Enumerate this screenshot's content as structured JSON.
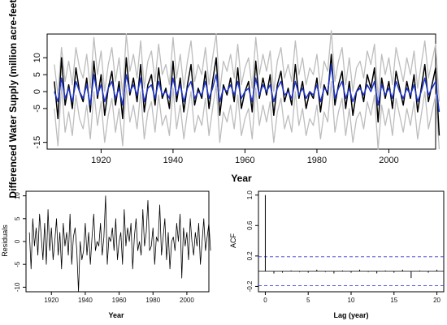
{
  "colors": {
    "black": "#000000",
    "blue": "#1f35c8",
    "gray": "#bdbdbd",
    "ci_dashed": "#3b3bd6"
  },
  "chart_data": [
    {
      "type": "line",
      "xlabel": "Year",
      "ylabel": "Differenced Water Supply (million acre-feet)",
      "xlim": [
        1905,
        2013
      ],
      "ylim": [
        -17,
        17
      ],
      "xticks": [
        1920,
        1940,
        1960,
        1980,
        2000
      ],
      "yticks": [
        -15,
        -5,
        0,
        5,
        10
      ],
      "x_start": 1907,
      "series": [
        {
          "color": "#000000",
          "values": [
            3,
            -8,
            10,
            -4,
            2,
            -5,
            7,
            0,
            -3,
            4,
            -6,
            9,
            -2,
            5,
            -7,
            1,
            6,
            -4,
            3,
            -8,
            10,
            -1,
            4,
            -3,
            8,
            -6,
            2,
            5,
            -4,
            7,
            -2,
            1,
            -5,
            9,
            -3,
            4,
            -6,
            2,
            8,
            -4,
            1,
            -2,
            6,
            -5,
            3,
            10,
            -7,
            2,
            -1,
            4,
            -3,
            7,
            -5,
            0,
            3,
            -6,
            9,
            -2,
            4,
            -1,
            5,
            -7,
            2,
            6,
            -3,
            1,
            -4,
            8,
            -2,
            3,
            -5,
            0,
            -2,
            4,
            -6,
            2,
            -1,
            11,
            -4,
            2,
            6,
            -5,
            3,
            -7,
            0,
            2,
            -3,
            5,
            1,
            7,
            -9,
            4,
            -2,
            3,
            -5,
            6,
            1,
            -4,
            3,
            -2,
            5,
            -6,
            1,
            8,
            -3,
            2,
            7,
            -13
          ]
        },
        {
          "color": "#1f35c8",
          "values": [
            0,
            -3,
            4,
            -2,
            1,
            -3,
            3,
            0,
            -2,
            2,
            -4,
            5,
            -1,
            2,
            -3,
            1,
            3,
            -2,
            1,
            -4,
            5,
            0,
            2,
            -1,
            4,
            -3,
            1,
            2,
            -2,
            3,
            -1,
            0,
            -2,
            4,
            -1,
            2,
            -3,
            1,
            3,
            -2,
            0,
            -1,
            3,
            -2,
            1,
            5,
            -3,
            1,
            0,
            2,
            -1,
            3,
            -2,
            0,
            1,
            -3,
            4,
            -1,
            2,
            0,
            2,
            -3,
            1,
            3,
            -1,
            0,
            -2,
            3,
            -1,
            1,
            -2,
            0,
            -1,
            2,
            -3,
            1,
            0,
            8,
            -2,
            1,
            3,
            -2,
            1,
            -3,
            0,
            1,
            -1,
            2,
            0,
            3,
            -4,
            2,
            -1,
            1,
            -2,
            3,
            0,
            -2,
            1,
            -1,
            2,
            -3,
            0,
            4,
            -1,
            1,
            3,
            -6
          ]
        },
        {
          "color": "#bdbdbd",
          "values": [
            8,
            -1,
            13,
            3,
            9,
            2,
            13,
            7,
            4,
            11,
            1,
            16,
            5,
            12,
            0,
            8,
            13,
            3,
            10,
            -1,
            17,
            6,
            11,
            4,
            15,
            1,
            9,
            12,
            3,
            14,
            5,
            8,
            2,
            16,
            4,
            11,
            1,
            9,
            15,
            3,
            8,
            5,
            13,
            2,
            10,
            17,
            0,
            9,
            6,
            11,
            4,
            14,
            2,
            7,
            10,
            1,
            16,
            5,
            11,
            6,
            12,
            0,
            9,
            13,
            4,
            8,
            3,
            15,
            5,
            10,
            2,
            7,
            5,
            11,
            1,
            9,
            6,
            18,
            3,
            9,
            13,
            2,
            10,
            0,
            7,
            9,
            4,
            12,
            8,
            14,
            -2,
            11,
            5,
            10,
            2,
            13,
            8,
            3,
            10,
            5,
            12,
            1,
            8,
            15,
            4,
            9,
            14,
            -3
          ]
        },
        {
          "color": "#bdbdbd",
          "values": [
            -5,
            -16,
            2,
            -12,
            -6,
            -13,
            -1,
            -8,
            -11,
            -4,
            -14,
            0,
            -10,
            -3,
            -15,
            -7,
            -2,
            -12,
            -5,
            -16,
            2,
            -9,
            -4,
            -11,
            0,
            -14,
            -6,
            -3,
            -12,
            -1,
            -10,
            -7,
            -13,
            1,
            -11,
            -4,
            -14,
            -6,
            0,
            -12,
            -7,
            -10,
            -2,
            -13,
            -5,
            2,
            -15,
            -6,
            -9,
            -4,
            -11,
            -1,
            -13,
            -8,
            -5,
            -14,
            1,
            -10,
            -4,
            -9,
            -3,
            -15,
            -6,
            -2,
            -11,
            -7,
            -12,
            0,
            -10,
            -5,
            -13,
            -8,
            -10,
            -4,
            -14,
            -6,
            -9,
            3,
            -12,
            -6,
            -2,
            -13,
            -5,
            -15,
            -8,
            -6,
            -11,
            -3,
            -7,
            -1,
            -17,
            -4,
            -10,
            -5,
            -13,
            -2,
            -7,
            -12,
            -5,
            -10,
            -3,
            -14,
            -7,
            0,
            -11,
            -6,
            -1,
            -17
          ]
        }
      ]
    },
    {
      "type": "line",
      "xlabel": "Year",
      "ylabel": "Residuals",
      "xlim": [
        1905,
        2013
      ],
      "ylim": [
        -11,
        11
      ],
      "xticks": [
        1920,
        1940,
        1960,
        1980,
        2000
      ],
      "yticks": [
        -10,
        -5,
        0,
        5,
        10
      ],
      "x_start": 1907,
      "series": [
        {
          "color": "#000000",
          "values": [
            2,
            -6,
            5,
            -1,
            3,
            -3,
            6,
            1,
            -4,
            4,
            -5,
            7,
            -2,
            3,
            -4,
            0,
            5,
            -3,
            2,
            -6,
            4,
            -1,
            2,
            -3,
            6,
            -5,
            1,
            3,
            -2,
            -11,
            0,
            -4,
            -2,
            4,
            -3,
            2,
            -5,
            1,
            6,
            -2,
            0,
            -1,
            4,
            -3,
            1,
            10,
            -5,
            1,
            0,
            3,
            -2,
            5,
            -4,
            0,
            2,
            -5,
            7,
            -1,
            3,
            0,
            4,
            -6,
            1,
            5,
            -2,
            0,
            -3,
            7,
            -1,
            2,
            9,
            -2,
            -1,
            3,
            -5,
            1,
            0,
            8,
            -3,
            1,
            5,
            -4,
            2,
            -6,
            0,
            1,
            -2,
            4,
            0,
            6,
            -8,
            3,
            -1,
            2,
            -4,
            5,
            0,
            -3,
            2,
            -1,
            4,
            -5,
            0,
            5,
            -2,
            1,
            4,
            -2
          ]
        }
      ]
    },
    {
      "type": "bar",
      "xlabel": "Lag (year)",
      "ylabel": "ACF",
      "xlim": [
        -0.8,
        20.8
      ],
      "ylim": [
        -0.27,
        1.05
      ],
      "xticks": [
        0,
        5,
        10,
        15,
        20
      ],
      "yticks": [
        -0.2,
        0.2,
        0.6,
        1.0
      ],
      "lags": [
        0,
        1,
        2,
        3,
        4,
        5,
        6,
        7,
        8,
        9,
        10,
        11,
        12,
        13,
        14,
        15,
        16,
        17,
        18,
        19,
        20
      ],
      "values": [
        1.0,
        -0.03,
        -0.02,
        0.01,
        -0.01,
        -0.02,
        0.02,
        -0.01,
        -0.03,
        0.01,
        -0.02,
        0.02,
        -0.01,
        -0.03,
        0.01,
        -0.02,
        0.02,
        -0.09,
        0.01,
        -0.02,
        0.02
      ],
      "ci": 0.19
    }
  ]
}
